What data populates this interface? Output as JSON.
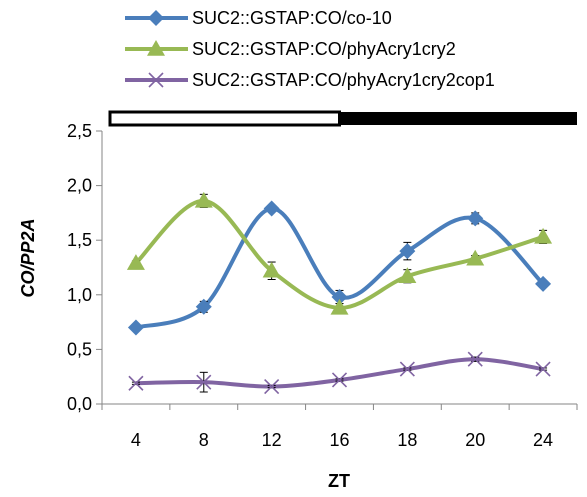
{
  "chart_data": {
    "type": "line",
    "categories": [
      "4",
      "8",
      "12",
      "16",
      "18",
      "20",
      "24"
    ],
    "xlabel": "ZT",
    "ylabel": "CO/PP2A",
    "ylim": [
      0,
      2.5
    ],
    "yticks": [
      "0,0",
      "0,5",
      "1,0",
      "1,5",
      "2,0",
      "2,5"
    ],
    "legend_position": "top",
    "light_bar": {
      "light_until_category_index": 3.5
    },
    "series": [
      {
        "name": "SUC2::GSTAP:CO/co-10",
        "color": "#4a7ebb",
        "marker": "diamond",
        "values": [
          0.7,
          0.89,
          1.79,
          0.98,
          1.4,
          1.7,
          1.1
        ],
        "errors": [
          0.02,
          0.05,
          0.02,
          0.06,
          0.08,
          0.05,
          0.02
        ]
      },
      {
        "name": "SUC2::GSTAP:CO/phyAcry1cry2",
        "color": "#98b954",
        "marker": "triangle",
        "values": [
          1.29,
          1.86,
          1.22,
          0.88,
          1.17,
          1.33,
          1.53
        ],
        "errors": [
          0.02,
          0.06,
          0.08,
          0.04,
          0.06,
          0.03,
          0.06
        ]
      },
      {
        "name": "SUC2::GSTAP:CO/phyAcry1cry2cop1",
        "color": "#8064a2",
        "marker": "x",
        "values": [
          0.19,
          0.2,
          0.16,
          0.22,
          0.32,
          0.41,
          0.32
        ],
        "errors": [
          0.01,
          0.09,
          0.01,
          0.01,
          0.01,
          0.02,
          0.01
        ]
      }
    ]
  }
}
